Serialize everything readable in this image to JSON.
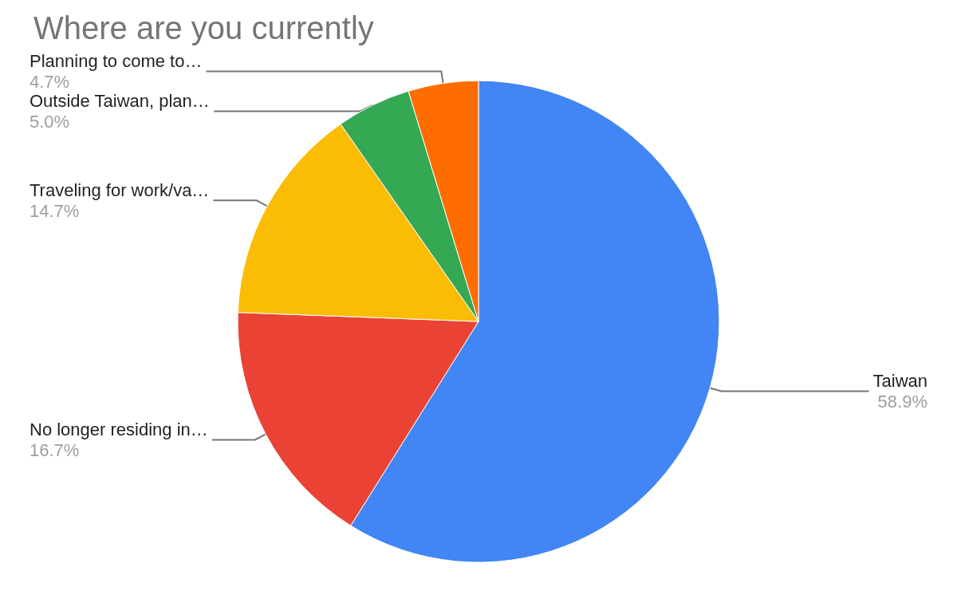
{
  "chart_data": {
    "type": "pie",
    "title": "Where are you currently",
    "categories": [
      "Taiwan",
      "No longer residing in…",
      "Traveling for work/va…",
      "Outside Taiwan, plan…",
      "Planning to come to…"
    ],
    "values": [
      58.9,
      16.7,
      14.7,
      5.0,
      4.7
    ],
    "value_labels": [
      "58.9%",
      "16.7%",
      "14.7%",
      "5.0%",
      "4.7%"
    ],
    "colors": [
      "#4285f4",
      "#ea4335",
      "#fbbc04",
      "#34a853",
      "#ff6d01"
    ],
    "legend": false
  }
}
